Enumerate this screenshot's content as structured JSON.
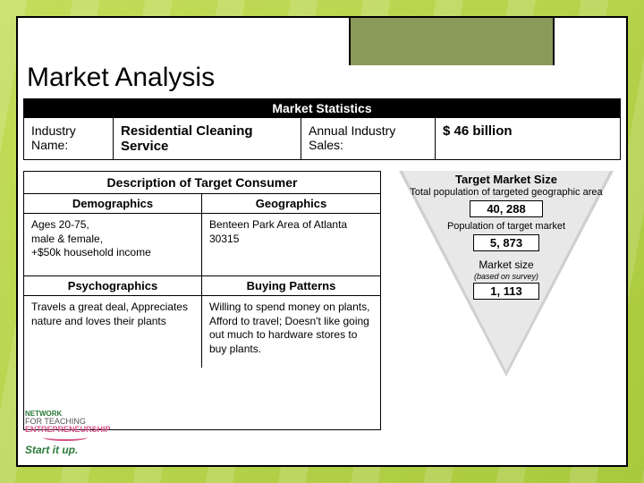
{
  "title": "Market Analysis",
  "stats_header": "Market Statistics",
  "stats": {
    "industry_label": "Industry Name:",
    "industry_value": "Residential Cleaning Service",
    "sales_label": "Annual Industry Sales:",
    "sales_value": "$ 46 billion"
  },
  "consumer": {
    "header": "Description of Target Consumer",
    "demographics_label": "Demographics",
    "demographics_body": "Ages 20-75,\nmale & female,\n+$50k household income",
    "geographics_label": "Geographics",
    "geographics_body": "Benteen Park Area of Atlanta 30315",
    "psychographics_label": "Psychographics",
    "psychographics_body": "Travels a great deal, Appreciates nature and loves their plants",
    "buying_label": "Buying Patterns",
    "buying_body": "Willing to spend money on plants, Afford to travel; Doesn't like going out much to hardware stores to buy plants."
  },
  "funnel": {
    "title": "Target Market Size",
    "sec1_label": "Total population of targeted geographic area",
    "sec1_value": "40, 288",
    "sec2_label": "Population of target market",
    "sec2_value": "5, 873",
    "sec3_label": "Market size",
    "sec3_note": "(based on survey)",
    "sec3_value": "1, 113"
  },
  "logo": {
    "line1": "NETWORK",
    "line2": "FOR TEACHING",
    "line3": "ENTREPRENEURSHIP",
    "tagline": "Start it up."
  },
  "colors": {
    "bg_gradient_start": "#c4dd5a",
    "bg_gradient_end": "#a8c93d",
    "tab_bg": "#8a9a5b",
    "funnel_fill": "#e8e8e8",
    "funnel_border": "#d0d0d0"
  }
}
